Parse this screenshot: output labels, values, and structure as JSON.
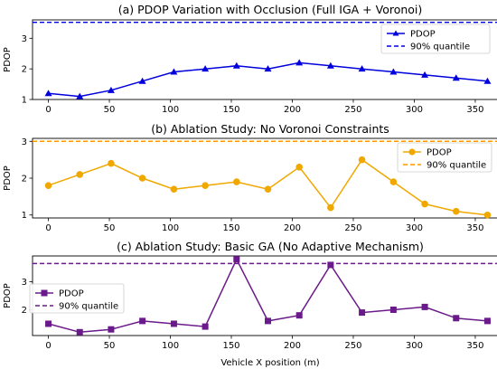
{
  "chart_data": [
    {
      "type": "line",
      "title": "(a) PDOP Variation with Occlusion (Full IGA + Voronoi)",
      "xlabel": "",
      "ylabel": "PDOP",
      "x": [
        0,
        25.7,
        51.4,
        77.1,
        102.9,
        128.6,
        154.3,
        180,
        205.7,
        231.4,
        257.1,
        282.9,
        308.6,
        334.3,
        360
      ],
      "xticks": [
        0,
        50,
        100,
        150,
        200,
        250,
        300,
        350
      ],
      "yticks": [
        1,
        2,
        3
      ],
      "xlim": [
        -13,
        373
      ],
      "ylim": [
        1,
        3.6
      ],
      "grid": false,
      "legend_position": "upper right",
      "series": [
        {
          "name": "PDOP",
          "values": [
            1.2,
            1.1,
            1.3,
            1.6,
            1.9,
            2.0,
            2.1,
            2.0,
            2.2,
            2.1,
            2.0,
            1.9,
            1.8,
            1.7,
            1.6
          ],
          "color": "#0000dd",
          "marker": "triangle"
        }
      ],
      "quantile": {
        "name": "90% quantile",
        "value": 3.52,
        "color": "#0000dd"
      }
    },
    {
      "type": "line",
      "title": "(b) Ablation Study: No Voronoi Constraints",
      "xlabel": "",
      "ylabel": "PDOP",
      "x": [
        0,
        25.7,
        51.4,
        77.1,
        102.9,
        128.6,
        154.3,
        180,
        205.7,
        231.4,
        257.1,
        282.9,
        308.6,
        334.3,
        360
      ],
      "xticks": [
        0,
        50,
        100,
        150,
        200,
        250,
        300,
        350
      ],
      "yticks": [
        1,
        2,
        3
      ],
      "xlim": [
        -13,
        373
      ],
      "ylim": [
        0.92,
        3.08
      ],
      "grid": false,
      "legend_position": "upper right",
      "series": [
        {
          "name": "PDOP",
          "values": [
            1.8,
            2.1,
            2.4,
            2.0,
            1.7,
            1.8,
            1.9,
            1.7,
            2.3,
            1.2,
            2.5,
            1.9,
            1.3,
            1.1,
            1.0
          ],
          "color": "#f0a800",
          "marker": "circle"
        }
      ],
      "quantile": {
        "name": "90% quantile",
        "value": 3.0,
        "color": "#ff9900"
      }
    },
    {
      "type": "line",
      "title": "(c) Ablation Study: Basic GA (No Adaptive Mechanism)",
      "xlabel": "Vehicle X position (m)",
      "ylabel": "PDOP",
      "x": [
        0,
        25.7,
        51.4,
        77.1,
        102.9,
        128.6,
        154.3,
        180,
        205.7,
        231.4,
        257.1,
        282.9,
        308.6,
        334.3,
        360
      ],
      "xticks": [
        0,
        50,
        100,
        150,
        200,
        250,
        300,
        350
      ],
      "yticks": [
        2,
        3
      ],
      "xlim": [
        -13,
        373
      ],
      "ylim": [
        1.08,
        3.92
      ],
      "grid": false,
      "legend_position": "upper left",
      "series": [
        {
          "name": "PDOP",
          "values": [
            1.5,
            1.2,
            1.3,
            1.6,
            1.5,
            1.4,
            3.8,
            1.6,
            1.8,
            3.6,
            1.9,
            2.0,
            2.1,
            1.7,
            1.6
          ],
          "color": "#6a1a8a",
          "marker": "square"
        }
      ],
      "quantile": {
        "name": "90% quantile",
        "value": 3.65,
        "color": "#6a1a8a"
      }
    }
  ]
}
